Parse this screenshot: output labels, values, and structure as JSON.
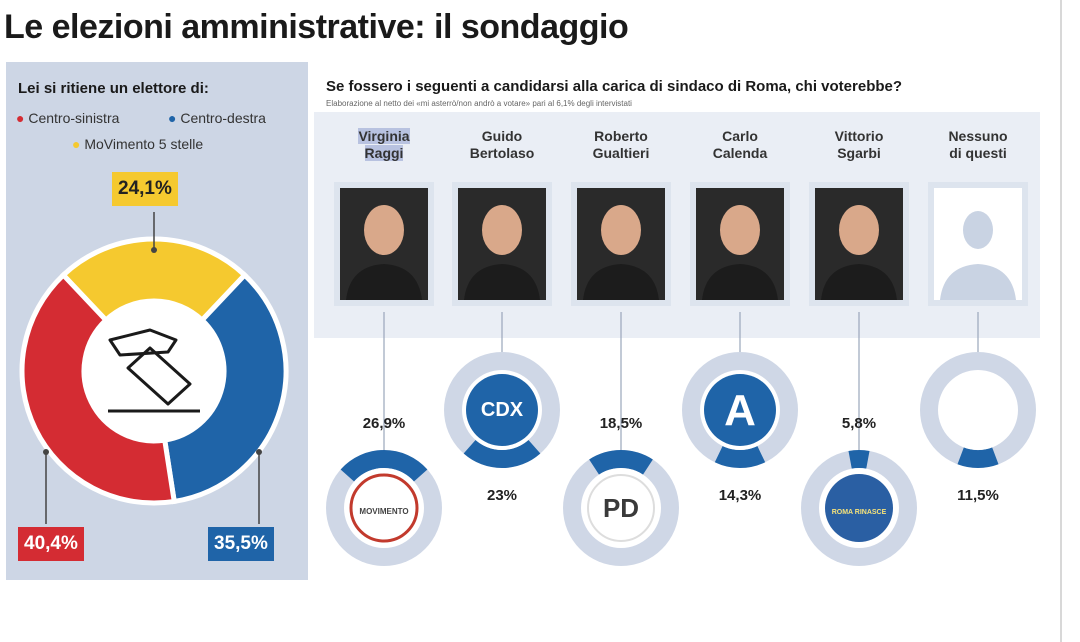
{
  "title": "Le elezioni amministrative: il sondaggio",
  "left": {
    "question": "Lei si ritiene un elettore di:",
    "legend": [
      {
        "label": "Centro-sinistra",
        "color": "#d42c33"
      },
      {
        "label": "Centro-destra",
        "color": "#1f64a8"
      },
      {
        "label": "MoVimento 5 stelle",
        "color": "#f5c92f"
      }
    ],
    "labels": {
      "m5s": "24,1%",
      "cs": "40,4%",
      "cd": "35,5%"
    }
  },
  "right": {
    "question": "Se fossero i seguenti a candidarsi alla carica di sindaco di Roma, chi voterebbe?",
    "subtitle": "Elaborazione al netto dei «mi asterrò/non andrò a votare» pari al 6,1% degli intervistati",
    "candidates": [
      {
        "first": "Virginia",
        "last": "Raggi",
        "pct": "26,9%",
        "logo": "M5S",
        "logo_text": "MOVIMENTO"
      },
      {
        "first": "Guido",
        "last": "Bertolaso",
        "pct": "23%",
        "logo": "CDX",
        "logo_text": "CDX"
      },
      {
        "first": "Roberto",
        "last": "Gualtieri",
        "pct": "18,5%",
        "logo": "PD",
        "logo_text": "PD"
      },
      {
        "first": "Carlo",
        "last": "Calenda",
        "pct": "14,3%",
        "logo": "Azione",
        "logo_text": "A"
      },
      {
        "first": "Vittorio",
        "last": "Sgarbi",
        "pct": "5,8%",
        "logo": "Sgarbi",
        "logo_text": "ROMA RINASCE"
      },
      {
        "first": "Nessuno",
        "last": "di questi",
        "pct": "11,5%",
        "logo": "none",
        "logo_text": ""
      }
    ]
  },
  "chart_data": [
    {
      "type": "pie",
      "title": "Lei si ritiene un elettore di:",
      "categories": [
        "Centro-sinistra",
        "Centro-destra",
        "MoVimento 5 stelle"
      ],
      "values": [
        40.4,
        35.5,
        24.1
      ],
      "colors": [
        "#d42c33",
        "#1f64a8",
        "#f5c92f"
      ],
      "donut": true,
      "legend": "top-left"
    },
    {
      "type": "bar",
      "title": "Se fossero i seguenti a candidarsi alla carica di sindaco di Roma, chi voterebbe?",
      "categories": [
        "Virginia Raggi",
        "Guido Bertolaso",
        "Roberto Gualtieri",
        "Carlo Calenda",
        "Vittorio Sgarbi",
        "Nessuno di questi"
      ],
      "values": [
        26.9,
        23,
        18.5,
        14.3,
        5.8,
        11.5
      ],
      "value_max": 100,
      "colors": [
        "#1f64a8"
      ]
    }
  ]
}
